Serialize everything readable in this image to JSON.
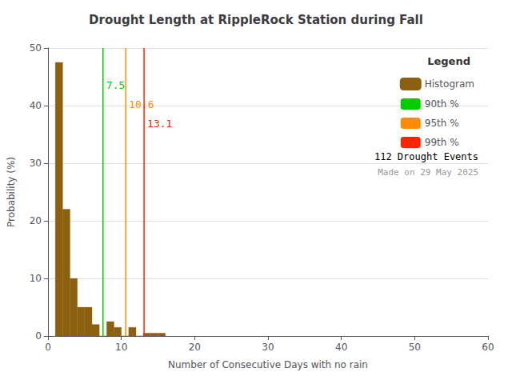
{
  "chart_data": {
    "type": "histogram",
    "title": "Drought Length at RippleRock Station during Fall",
    "xlabel": "Number of Consecutive Days with no rain",
    "ylabel": "Probability (%)",
    "xlim": [
      0,
      60
    ],
    "ylim": [
      0,
      50
    ],
    "xticks": [
      0,
      10,
      20,
      30,
      40,
      50,
      60
    ],
    "yticks": [
      0,
      10,
      20,
      30,
      40,
      50
    ],
    "legend": "upper right",
    "legend_title": "Legend",
    "annotations": [
      "112 Drought Events",
      "Made on 29 May 2025"
    ],
    "series": [
      {
        "name": "Histogram",
        "type": "bar",
        "color": "#8B6010",
        "bins": [
          1,
          2,
          3,
          4,
          5,
          6,
          7,
          8,
          9,
          10,
          11,
          12,
          13,
          14,
          15,
          16
        ],
        "values": [
          47.5,
          22.0,
          10.0,
          5.0,
          5.0,
          2.0,
          0.0,
          2.5,
          1.5,
          0.0,
          1.5,
          0.0,
          0.5,
          0.5,
          0.5
        ]
      },
      {
        "name": "90th %",
        "type": "vline",
        "color": "#00CC00",
        "x": 7.5
      },
      {
        "name": "95th %",
        "type": "vline",
        "color": "#FF8C00",
        "x": 10.6
      },
      {
        "name": "99th %",
        "type": "vline",
        "color": "#FF2200",
        "x": 13.1
      }
    ]
  }
}
